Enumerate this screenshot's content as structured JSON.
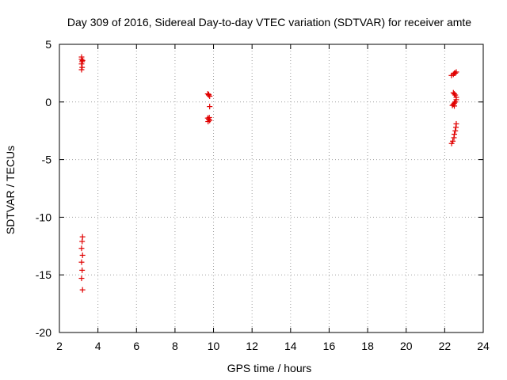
{
  "chart_data": {
    "type": "scatter",
    "title": "Day 309 of 2016, Sidereal Day-to-day VTEC variation (SDTVAR) for receiver amte",
    "xlabel": "GPS time / hours",
    "ylabel": "SDTVAR / TECUs",
    "xlim": [
      2,
      24
    ],
    "ylim": [
      -20,
      5
    ],
    "xticks": [
      2,
      4,
      6,
      8,
      10,
      12,
      14,
      16,
      18,
      20,
      22,
      24
    ],
    "yticks": [
      5,
      0,
      -5,
      -10,
      -15,
      -20
    ],
    "grid": true,
    "marker": "+",
    "marker_color": "#e00000",
    "series": [
      {
        "name": "SDTVAR",
        "points": [
          [
            3.15,
            3.9
          ],
          [
            3.15,
            3.7
          ],
          [
            3.18,
            3.5
          ],
          [
            3.15,
            3.3
          ],
          [
            3.2,
            3.6
          ],
          [
            3.18,
            3.0
          ],
          [
            3.15,
            2.8
          ],
          [
            3.2,
            -11.7
          ],
          [
            3.18,
            -12.1
          ],
          [
            3.15,
            -12.7
          ],
          [
            3.2,
            -13.3
          ],
          [
            3.15,
            -13.9
          ],
          [
            3.18,
            -14.6
          ],
          [
            3.15,
            -15.3
          ],
          [
            3.2,
            -16.3
          ],
          [
            9.7,
            0.7
          ],
          [
            9.75,
            0.6
          ],
          [
            9.8,
            0.5
          ],
          [
            9.75,
            0.65
          ],
          [
            9.8,
            -0.4
          ],
          [
            9.7,
            -1.4
          ],
          [
            9.75,
            -1.5
          ],
          [
            9.8,
            -1.6
          ],
          [
            9.72,
            -1.7
          ],
          [
            9.78,
            -1.35
          ],
          [
            22.35,
            2.3
          ],
          [
            22.45,
            2.4
          ],
          [
            22.5,
            2.5
          ],
          [
            22.55,
            2.5
          ],
          [
            22.6,
            2.6
          ],
          [
            22.45,
            0.8
          ],
          [
            22.5,
            0.7
          ],
          [
            22.55,
            0.6
          ],
          [
            22.6,
            0.4
          ],
          [
            22.6,
            0.2
          ],
          [
            22.55,
            0.0
          ],
          [
            22.5,
            -0.1
          ],
          [
            22.45,
            -0.2
          ],
          [
            22.4,
            -0.3
          ],
          [
            22.5,
            -0.35
          ],
          [
            22.6,
            -1.9
          ],
          [
            22.58,
            -2.2
          ],
          [
            22.55,
            -2.5
          ],
          [
            22.5,
            -2.8
          ],
          [
            22.48,
            -3.1
          ],
          [
            22.42,
            -3.4
          ],
          [
            22.36,
            -3.6
          ]
        ]
      }
    ]
  }
}
